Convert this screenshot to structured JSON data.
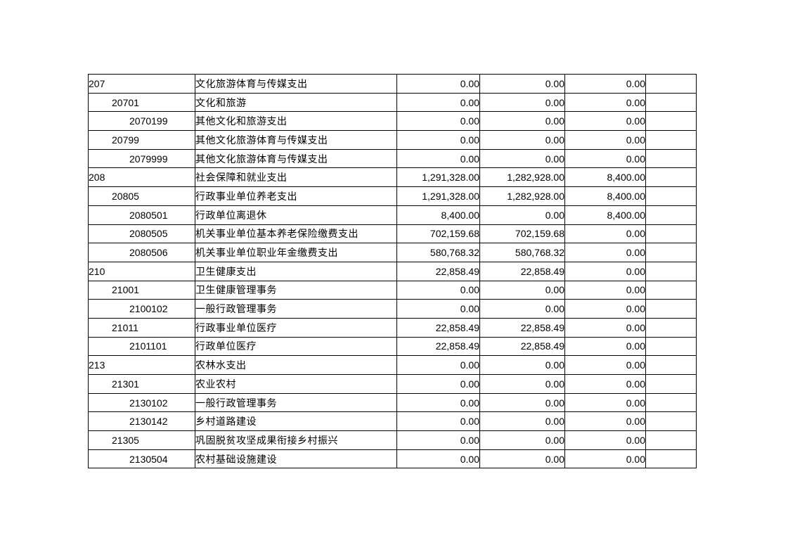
{
  "page": {
    "background": "#ffffff",
    "text_color": "#000000",
    "table_border_color": "#000000"
  },
  "table": {
    "rows": [
      {
        "code": "207",
        "level": 1,
        "name": "文化旅游体育与传媒支出",
        "amounts": [
          "0.00",
          "0.00",
          "0.00"
        ],
        "blank": ""
      },
      {
        "code": "20701",
        "level": 2,
        "name": "文化和旅游",
        "amounts": [
          "0.00",
          "0.00",
          "0.00"
        ],
        "blank": ""
      },
      {
        "code": "2070199",
        "level": 3,
        "name": "其他文化和旅游支出",
        "amounts": [
          "0.00",
          "0.00",
          "0.00"
        ],
        "blank": ""
      },
      {
        "code": "20799",
        "level": 2,
        "name": "其他文化旅游体育与传媒支出",
        "amounts": [
          "0.00",
          "0.00",
          "0.00"
        ],
        "blank": ""
      },
      {
        "code": "2079999",
        "level": 3,
        "name": "其他文化旅游体育与传媒支出",
        "amounts": [
          "0.00",
          "0.00",
          "0.00"
        ],
        "blank": ""
      },
      {
        "code": "208",
        "level": 1,
        "name": "社会保障和就业支出",
        "amounts": [
          "1,291,328.00",
          "1,282,928.00",
          "8,400.00"
        ],
        "blank": ""
      },
      {
        "code": "20805",
        "level": 2,
        "name": "行政事业单位养老支出",
        "amounts": [
          "1,291,328.00",
          "1,282,928.00",
          "8,400.00"
        ],
        "blank": ""
      },
      {
        "code": "2080501",
        "level": 3,
        "name": "行政单位离退休",
        "amounts": [
          "8,400.00",
          "0.00",
          "8,400.00"
        ],
        "blank": ""
      },
      {
        "code": "2080505",
        "level": 3,
        "name": "机关事业单位基本养老保险缴费支出",
        "amounts": [
          "702,159.68",
          "702,159.68",
          "0.00"
        ],
        "blank": ""
      },
      {
        "code": "2080506",
        "level": 3,
        "name": "机关事业单位职业年金缴费支出",
        "amounts": [
          "580,768.32",
          "580,768.32",
          "0.00"
        ],
        "blank": ""
      },
      {
        "code": "210",
        "level": 1,
        "name": "卫生健康支出",
        "amounts": [
          "22,858.49",
          "22,858.49",
          "0.00"
        ],
        "blank": ""
      },
      {
        "code": "21001",
        "level": 2,
        "name": "卫生健康管理事务",
        "amounts": [
          "0.00",
          "0.00",
          "0.00"
        ],
        "blank": ""
      },
      {
        "code": "2100102",
        "level": 3,
        "name": "一般行政管理事务",
        "amounts": [
          "0.00",
          "0.00",
          "0.00"
        ],
        "blank": ""
      },
      {
        "code": "21011",
        "level": 2,
        "name": "行政事业单位医疗",
        "amounts": [
          "22,858.49",
          "22,858.49",
          "0.00"
        ],
        "blank": ""
      },
      {
        "code": "2101101",
        "level": 3,
        "name": "行政单位医疗",
        "amounts": [
          "22,858.49",
          "22,858.49",
          "0.00"
        ],
        "blank": ""
      },
      {
        "code": "213",
        "level": 1,
        "name": "农林水支出",
        "amounts": [
          "0.00",
          "0.00",
          "0.00"
        ],
        "blank": ""
      },
      {
        "code": "21301",
        "level": 2,
        "name": "农业农村",
        "amounts": [
          "0.00",
          "0.00",
          "0.00"
        ],
        "blank": ""
      },
      {
        "code": "2130102",
        "level": 3,
        "name": "一般行政管理事务",
        "amounts": [
          "0.00",
          "0.00",
          "0.00"
        ],
        "blank": ""
      },
      {
        "code": "2130142",
        "level": 3,
        "name": "乡村道路建设",
        "amounts": [
          "0.00",
          "0.00",
          "0.00"
        ],
        "blank": ""
      },
      {
        "code": "21305",
        "level": 2,
        "name": "巩固脱贫攻坚成果衔接乡村振兴",
        "amounts": [
          "0.00",
          "0.00",
          "0.00"
        ],
        "blank": ""
      },
      {
        "code": "2130504",
        "level": 3,
        "name": "农村基础设施建设",
        "amounts": [
          "0.00",
          "0.00",
          "0.00"
        ],
        "blank": ""
      }
    ]
  }
}
